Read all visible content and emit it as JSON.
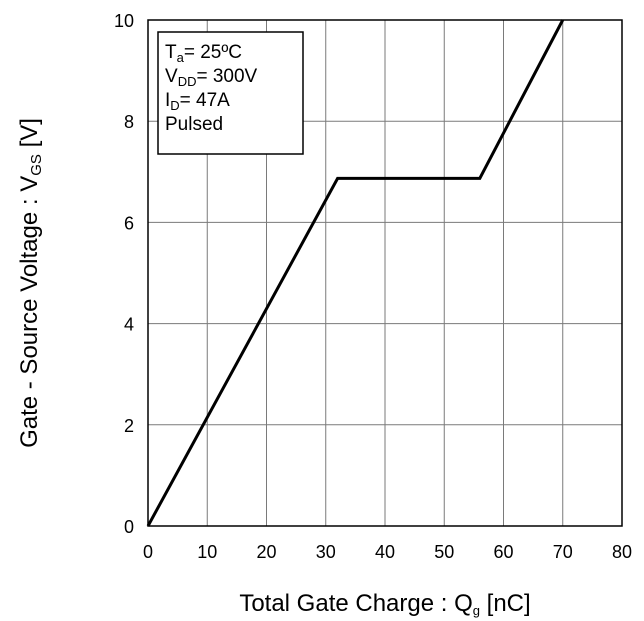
{
  "chart_data": {
    "type": "line",
    "title": "",
    "xlabel": {
      "text": "Total Gate Charge : Q",
      "sub": "g",
      "unit": " [nC]"
    },
    "ylabel": {
      "text": "Gate - Source Voltage : V",
      "sub": "GS",
      "unit": " [V]"
    },
    "xlim": [
      0,
      80
    ],
    "ylim": [
      0,
      10
    ],
    "xticks": [
      "0",
      "10",
      "20",
      "30",
      "40",
      "50",
      "60",
      "70",
      "80"
    ],
    "yticks": [
      "0",
      "2",
      "4",
      "6",
      "8",
      "10"
    ],
    "grid": true,
    "series": [
      {
        "x": [
          0,
          32,
          56,
          70
        ],
        "y": [
          0,
          6.87,
          6.87,
          10
        ]
      }
    ],
    "conditions": [
      {
        "main": "T",
        "sub": "a",
        "rest": "= 25ºC"
      },
      {
        "main": "V",
        "sub": "DD",
        "rest": "= 300V"
      },
      {
        "main": "I",
        "sub": "D",
        "rest": "= 47A"
      },
      {
        "main": "Pulsed",
        "sub": "",
        "rest": ""
      }
    ],
    "legend_placement": "top-left"
  }
}
